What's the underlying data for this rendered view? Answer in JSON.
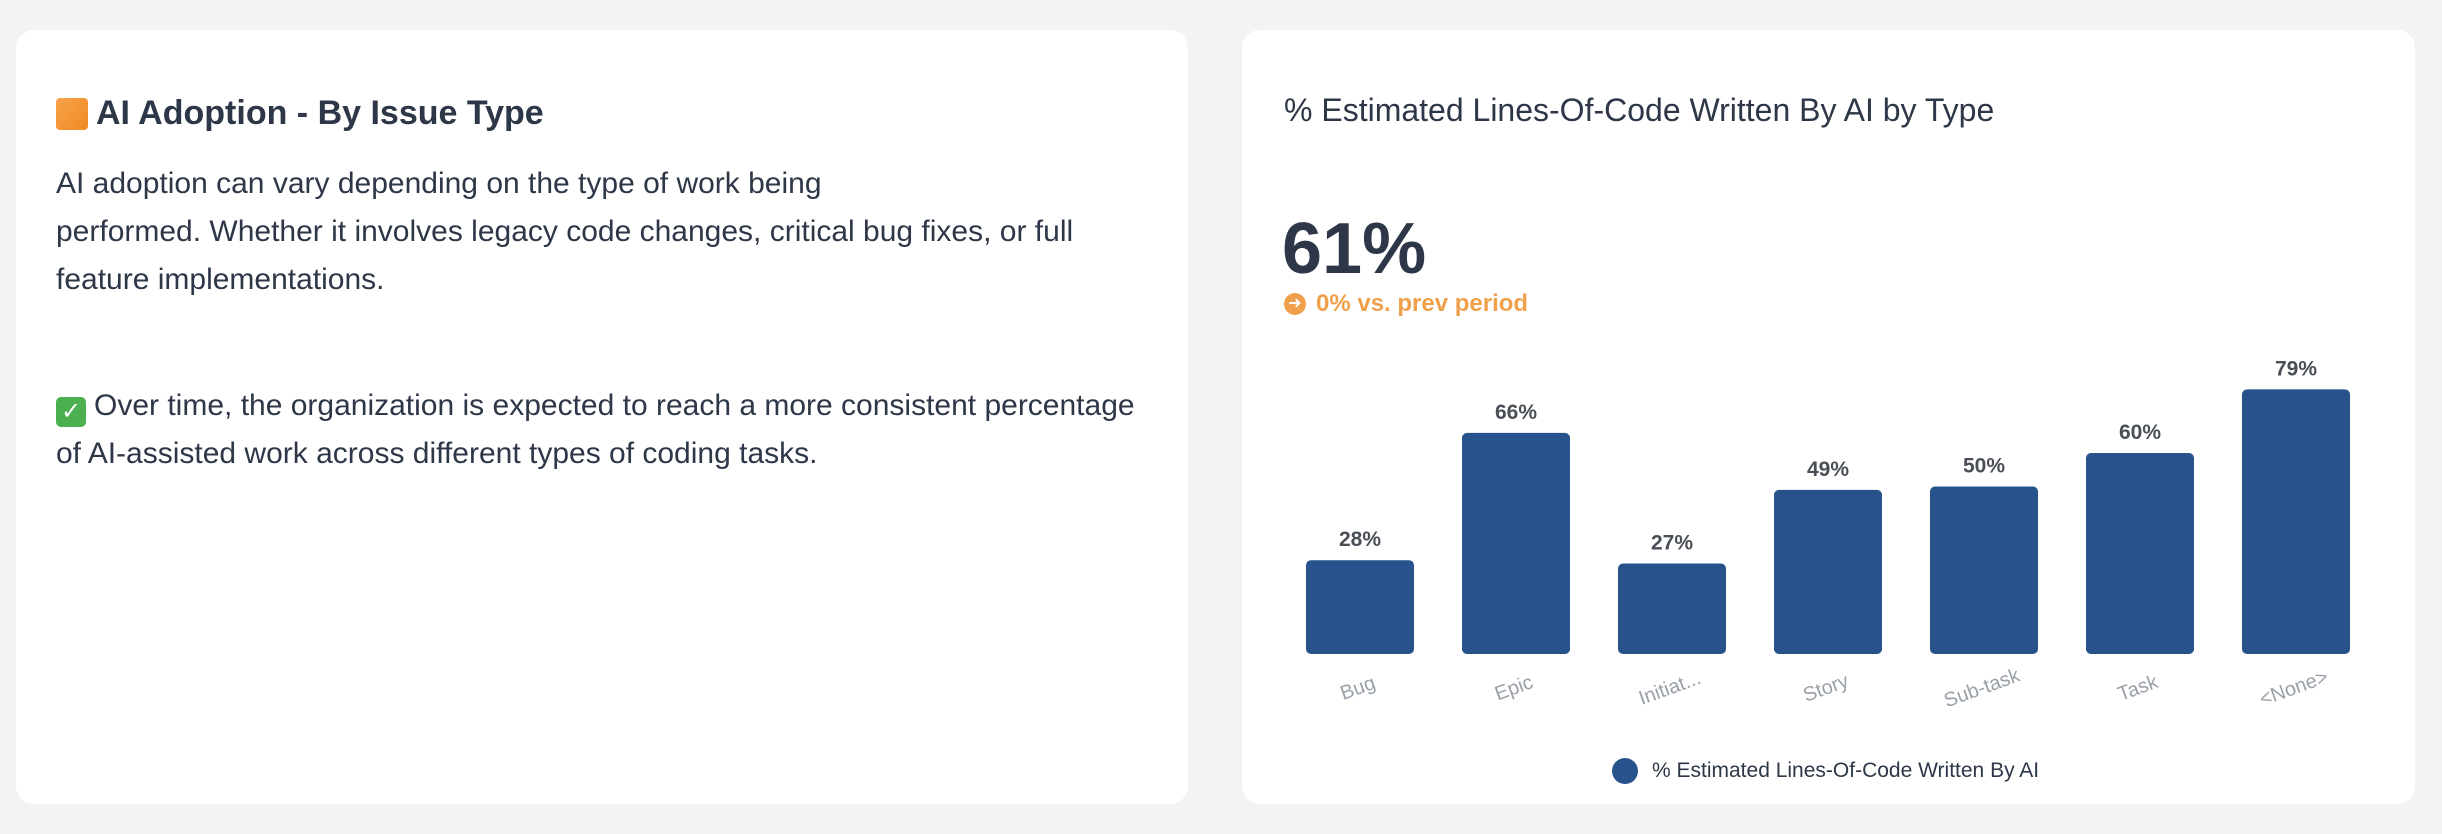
{
  "left": {
    "title": "AI Adoption - By Issue Type",
    "title_icon": "orange-square-icon",
    "paragraph1_line1": "AI adoption can vary depending on the type of work being",
    "paragraph1_rest": "performed. Whether it involves legacy code changes, critical bug fixes, or full feature implementations.",
    "paragraph2": "Over time, the organization is expected to reach a more consistent percentage of AI-assisted work across different types of coding tasks.",
    "paragraph2_icon": "check-mark-icon"
  },
  "right": {
    "title": "% Estimated Lines-Of-Code Written By AI by Type",
    "kpi_value": "61%",
    "delta_text": "0% vs. prev period",
    "delta_icon": "arrow-right-circle-icon",
    "accent_color": "#f0a04b"
  },
  "chart_data": {
    "type": "bar",
    "categories": [
      "Bug",
      "Epic",
      "Initiat...",
      "Story",
      "Sub-task",
      "Task",
      "<None>"
    ],
    "series": [
      {
        "name": "% Estimated Lines-Of-Code Written By AI",
        "values": [
          28,
          66,
          27,
          49,
          50,
          60,
          79
        ],
        "labels": [
          "28%",
          "66%",
          "27%",
          "49%",
          "50%",
          "60%",
          "79%"
        ],
        "color": "#28528c"
      }
    ],
    "ylim": [
      0,
      80
    ],
    "grid": false,
    "legend": "bottom-center"
  }
}
